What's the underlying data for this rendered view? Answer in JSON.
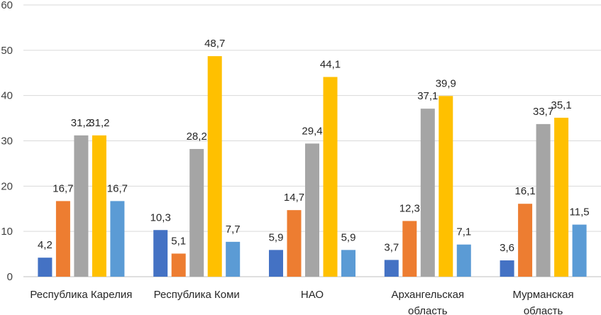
{
  "chart_data": {
    "type": "bar",
    "title": "",
    "xlabel": "",
    "ylabel": "",
    "ylim": [
      0,
      60
    ],
    "yticks": [
      0,
      10,
      20,
      30,
      40,
      50,
      60
    ],
    "grid": true,
    "legend": "none",
    "categories": [
      [
        "Республика Карелия"
      ],
      [
        "Республика Коми"
      ],
      [
        "НАО"
      ],
      [
        "Архангельская",
        "область"
      ],
      [
        "Мурманская",
        "область"
      ]
    ],
    "series": [
      {
        "name": "series-1",
        "color": "#4472C4",
        "values": [
          4.2,
          10.3,
          5.9,
          3.7,
          3.6
        ],
        "labels": [
          "4,2",
          "10,3",
          "5,9",
          "3,7",
          "3,6"
        ]
      },
      {
        "name": "series-2",
        "color": "#ED7D31",
        "values": [
          16.7,
          5.1,
          14.7,
          12.3,
          16.1
        ],
        "labels": [
          "16,7",
          "5,1",
          "14,7",
          "12,3",
          "16,1"
        ]
      },
      {
        "name": "series-3",
        "color": "#A5A5A5",
        "values": [
          31.2,
          28.2,
          29.4,
          37.1,
          33.7
        ],
        "labels": [
          "31,2",
          "28,2",
          "29,4",
          "37,1",
          "33,7"
        ]
      },
      {
        "name": "series-4",
        "color": "#FFC000",
        "values": [
          31.2,
          48.7,
          44.1,
          39.9,
          35.1
        ],
        "labels": [
          "31,2",
          "48,7",
          "44,1",
          "39,9",
          "35,1"
        ]
      },
      {
        "name": "series-5",
        "color": "#5B9BD5",
        "values": [
          16.7,
          7.7,
          5.9,
          7.1,
          11.5
        ],
        "labels": [
          "16,7",
          "7,7",
          "5,9",
          "7,1",
          "11,5"
        ]
      }
    ]
  }
}
